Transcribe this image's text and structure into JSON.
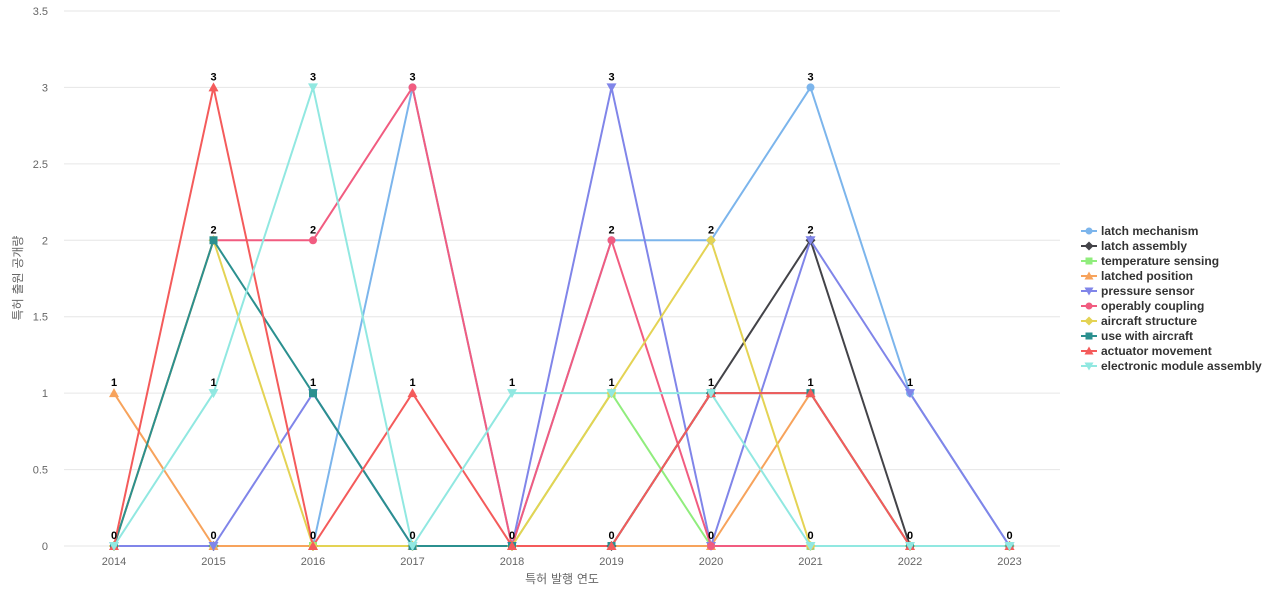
{
  "chart_data": {
    "type": "line",
    "title": "",
    "xlabel": "특허 발행 연도",
    "ylabel": "특허 출원 공개량",
    "x": [
      "2014",
      "2015",
      "2016",
      "2017",
      "2018",
      "2019",
      "2020",
      "2021",
      "2022",
      "2023"
    ],
    "ylim": [
      0,
      3.5
    ],
    "yticks": [
      "0",
      "0.5",
      "1",
      "1.5",
      "2",
      "2.5",
      "3",
      "3.5"
    ],
    "grid": true,
    "legend_position": "right",
    "series": [
      {
        "name": "latch mechanism",
        "color": "#7cb5ec",
        "marker": "circle",
        "values": [
          0,
          0,
          0,
          3,
          0,
          2,
          2,
          3,
          1,
          0
        ]
      },
      {
        "name": "latch assembly",
        "color": "#434348",
        "marker": "diamond",
        "values": [
          0,
          0,
          0,
          0,
          0,
          0,
          1,
          2,
          0,
          0
        ]
      },
      {
        "name": "temperature sensing",
        "color": "#90ed7d",
        "marker": "square",
        "values": [
          0,
          0,
          0,
          0,
          0,
          1,
          0,
          0,
          0,
          0
        ]
      },
      {
        "name": "latched position",
        "color": "#f7a35c",
        "marker": "triangle",
        "values": [
          1,
          0,
          0,
          0,
          0,
          0,
          0,
          1,
          0,
          0
        ]
      },
      {
        "name": "pressure sensor",
        "color": "#8085e9",
        "marker": "triangle-down",
        "values": [
          0,
          0,
          1,
          0,
          0,
          3,
          0,
          2,
          1,
          0
        ]
      },
      {
        "name": "operably coupling",
        "color": "#f15c80",
        "marker": "circle",
        "values": [
          0,
          2,
          2,
          3,
          0,
          2,
          0,
          0,
          0,
          0
        ]
      },
      {
        "name": "aircraft structure",
        "color": "#e4d354",
        "marker": "diamond",
        "values": [
          0,
          2,
          0,
          0,
          0,
          1,
          2,
          0,
          0,
          0
        ]
      },
      {
        "name": "use with aircraft",
        "color": "#2b908f",
        "marker": "square",
        "values": [
          0,
          2,
          1,
          0,
          0,
          0,
          1,
          1,
          0,
          0
        ]
      },
      {
        "name": "actuator movement",
        "color": "#f45b5b",
        "marker": "triangle",
        "values": [
          0,
          3,
          0,
          1,
          0,
          0,
          1,
          1,
          0,
          0
        ]
      },
      {
        "name": "electronic module assembly",
        "color": "#91e8e1",
        "marker": "triangle-down",
        "values": [
          0,
          1,
          3,
          0,
          1,
          1,
          1,
          0,
          0,
          0
        ]
      }
    ],
    "data_labels": [
      {
        "x": "2014",
        "value": 1,
        "text": "1"
      },
      {
        "x": "2014",
        "value": 0,
        "text": "0"
      },
      {
        "x": "2015",
        "value": 3,
        "text": "3"
      },
      {
        "x": "2015",
        "value": 2,
        "text": "2"
      },
      {
        "x": "2015",
        "value": 1,
        "text": "1"
      },
      {
        "x": "2015",
        "value": 0,
        "text": "0"
      },
      {
        "x": "2016",
        "value": 3,
        "text": "3"
      },
      {
        "x": "2016",
        "value": 2,
        "text": "2"
      },
      {
        "x": "2016",
        "value": 1,
        "text": "1"
      },
      {
        "x": "2016",
        "value": 0,
        "text": "0"
      },
      {
        "x": "2017",
        "value": 3,
        "text": "3"
      },
      {
        "x": "2017",
        "value": 1,
        "text": "1"
      },
      {
        "x": "2017",
        "value": 0,
        "text": "0"
      },
      {
        "x": "2018",
        "value": 1,
        "text": "1"
      },
      {
        "x": "2018",
        "value": 0,
        "text": "0"
      },
      {
        "x": "2019",
        "value": 3,
        "text": "3"
      },
      {
        "x": "2019",
        "value": 2,
        "text": "2"
      },
      {
        "x": "2019",
        "value": 1,
        "text": "1"
      },
      {
        "x": "2019",
        "value": 0,
        "text": "0"
      },
      {
        "x": "2020",
        "value": 2,
        "text": "2"
      },
      {
        "x": "2020",
        "value": 1,
        "text": "1"
      },
      {
        "x": "2020",
        "value": 0,
        "text": "0"
      },
      {
        "x": "2021",
        "value": 3,
        "text": "3"
      },
      {
        "x": "2021",
        "value": 2,
        "text": "2"
      },
      {
        "x": "2021",
        "value": 1,
        "text": "1"
      },
      {
        "x": "2021",
        "value": 0,
        "text": "0"
      },
      {
        "x": "2022",
        "value": 1,
        "text": "1"
      },
      {
        "x": "2022",
        "value": 0,
        "text": "0"
      },
      {
        "x": "2023",
        "value": 0,
        "text": "0"
      }
    ]
  }
}
